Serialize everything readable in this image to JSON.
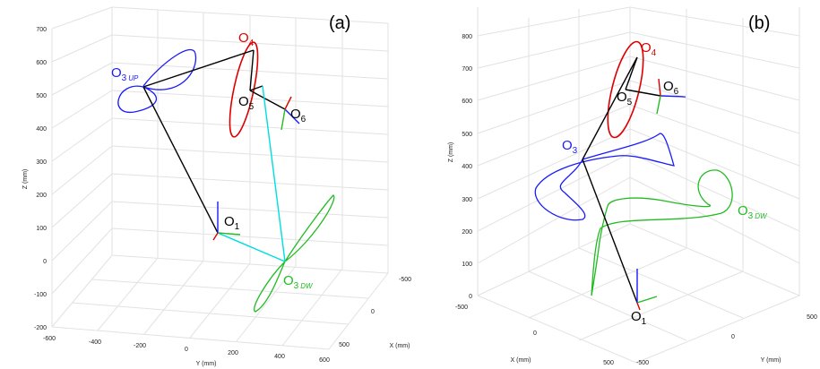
{
  "panels": [
    {
      "label": "(a)",
      "z_axis": {
        "label": "Z (mm)",
        "ticks": [
          "700",
          "600",
          "500",
          "400",
          "300",
          "200",
          "100",
          "0",
          "-100",
          "-200"
        ]
      },
      "y_axis": {
        "label": "Y (mm)",
        "ticks": [
          "-600",
          "-400",
          "-200",
          "0",
          "200",
          "400",
          "600"
        ]
      },
      "x_axis": {
        "label": "X (mm)",
        "ticks": [
          "-500",
          "0",
          "500"
        ]
      },
      "points": [
        {
          "id": "O1",
          "base": "O",
          "sub": "1",
          "italic_sub": "",
          "color": "#000000"
        },
        {
          "id": "O3UP",
          "base": "O",
          "sub": "3",
          "italic_sub": "UP",
          "color": "#1a1aff"
        },
        {
          "id": "O4",
          "base": "O",
          "sub": "4",
          "italic_sub": "",
          "color": "#dd0000"
        },
        {
          "id": "O5",
          "base": "O",
          "sub": "5",
          "italic_sub": "",
          "color": "#000000"
        },
        {
          "id": "O6",
          "base": "O",
          "sub": "6",
          "italic_sub": "",
          "color": "#000000"
        },
        {
          "id": "O3DW",
          "base": "O",
          "sub": "3",
          "italic_sub": "DW",
          "color": "#22bb22"
        }
      ]
    },
    {
      "label": "(b)",
      "z_axis": {
        "label": "Z (mm)",
        "ticks": [
          "800",
          "700",
          "600",
          "500",
          "400",
          "300",
          "200",
          "100",
          "0"
        ]
      },
      "x_axis": {
        "label": "X (mm)",
        "ticks": [
          "-500",
          "0",
          "500"
        ]
      },
      "y_axis": {
        "label": "Y (mm)",
        "ticks": [
          "-500",
          "0",
          "500"
        ]
      },
      "points": [
        {
          "id": "O1",
          "base": "O",
          "sub": "1",
          "italic_sub": "",
          "color": "#000000"
        },
        {
          "id": "O3",
          "base": "O",
          "sub": "3",
          "italic_sub": "",
          "color": "#1a1aff"
        },
        {
          "id": "O4",
          "base": "O",
          "sub": "4",
          "italic_sub": "",
          "color": "#dd0000"
        },
        {
          "id": "O5",
          "base": "O",
          "sub": "5",
          "italic_sub": "",
          "color": "#000000"
        },
        {
          "id": "O6",
          "base": "O",
          "sub": "6",
          "italic_sub": "",
          "color": "#000000"
        },
        {
          "id": "O3DW",
          "base": "O",
          "sub": "3",
          "italic_sub": "DW",
          "color": "#22bb22"
        }
      ]
    }
  ],
  "colors": {
    "link": "#000000",
    "upper_arm": "#1a1aff",
    "wrist": "#dd0000",
    "lower_branch": "#22bb22",
    "cyan_link": "#00dddd",
    "grid": "#e2e2e2"
  }
}
